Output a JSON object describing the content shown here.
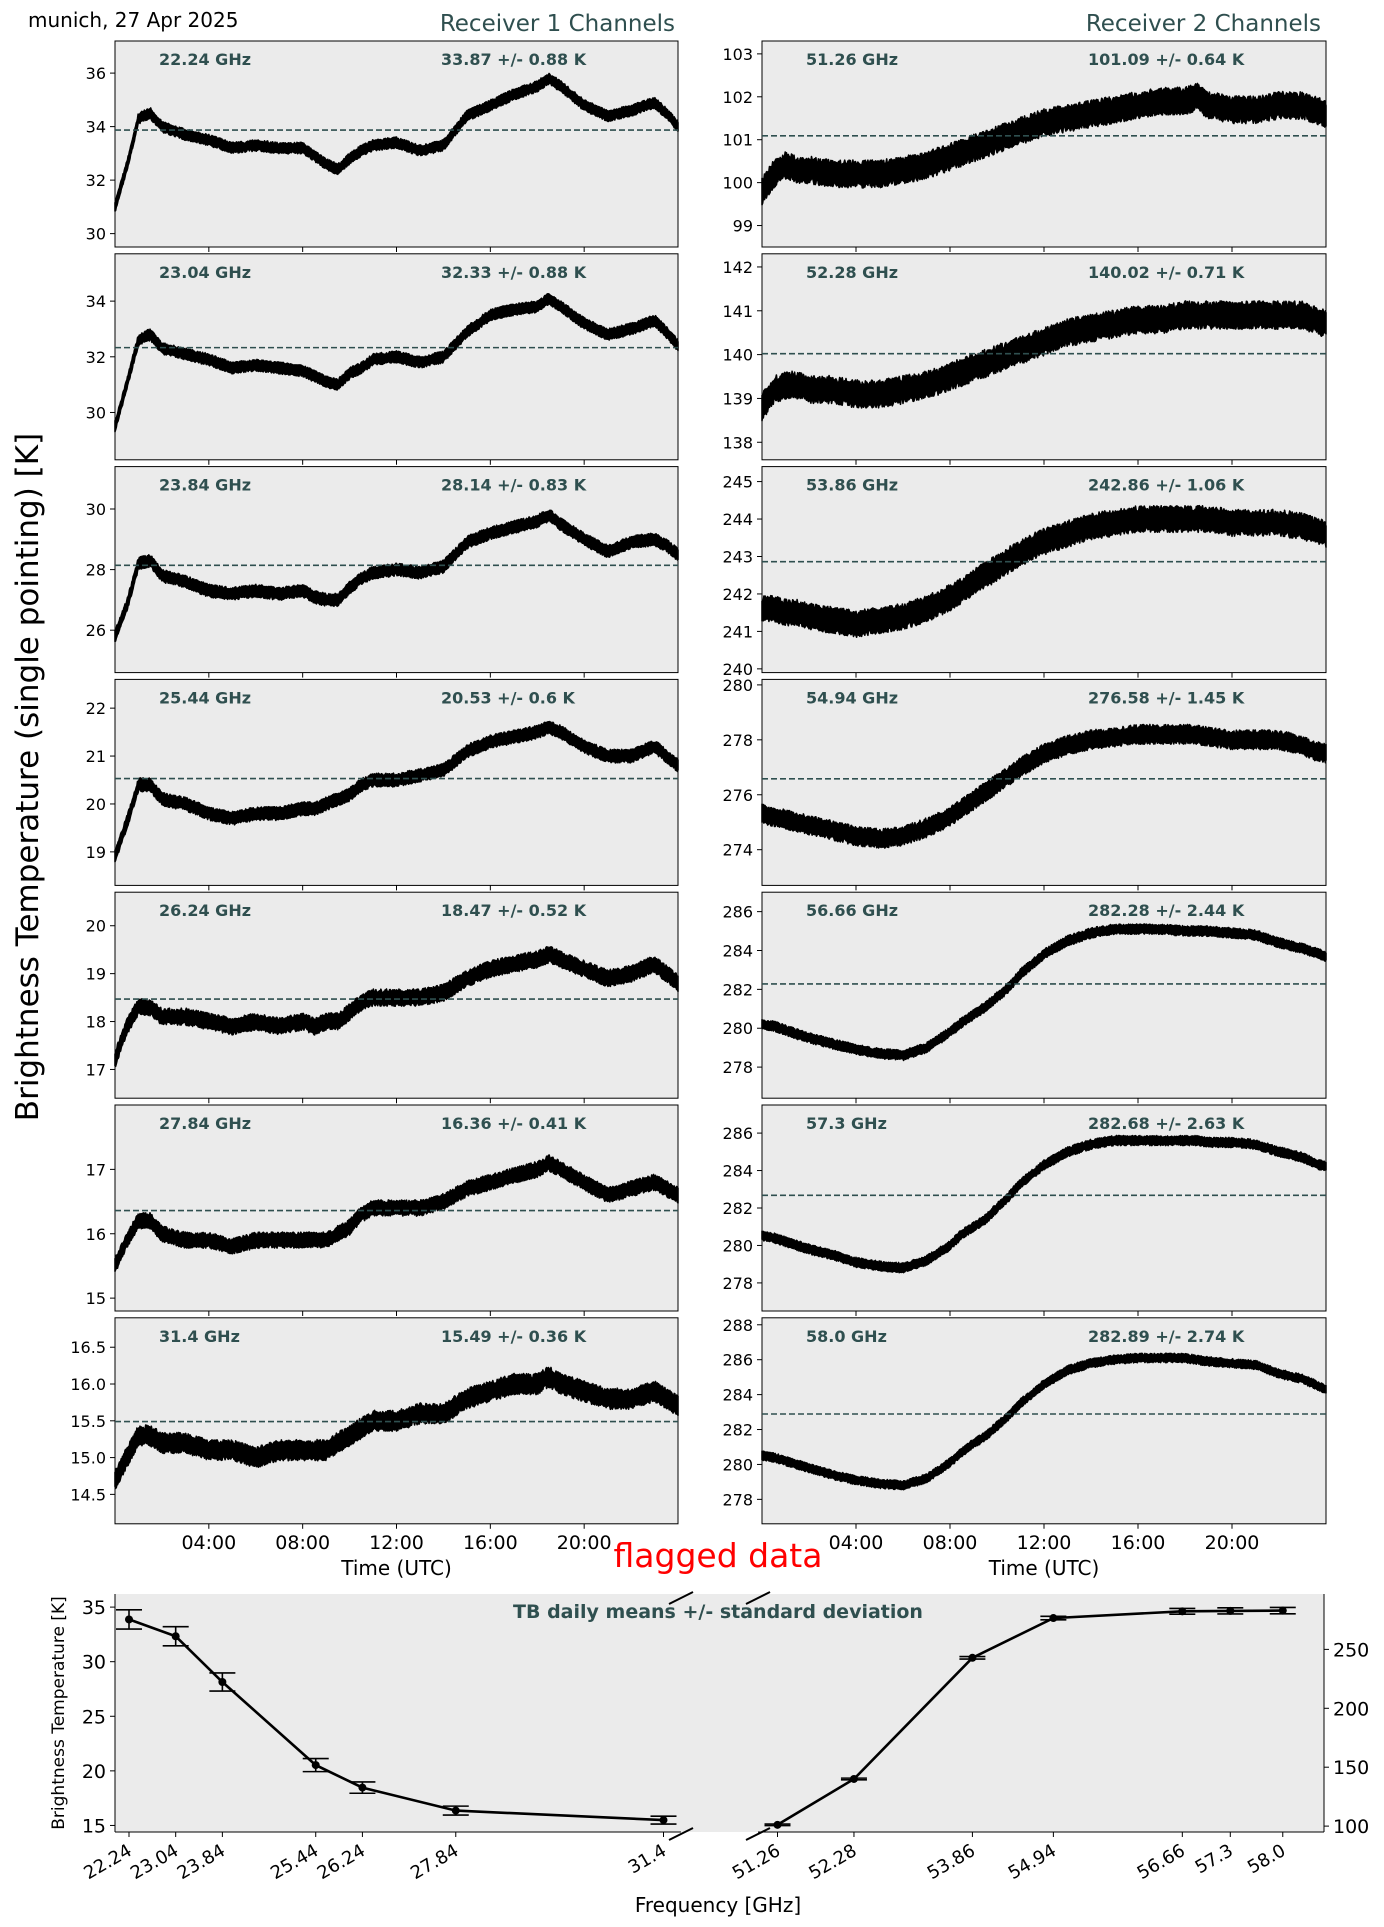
{
  "figure": {
    "location_date": "munich, 27 Apr 2025",
    "receiver1_title": "Receiver 1 Channels",
    "receiver2_title": "Receiver 2 Channels",
    "ylabel": "Brightness Temperature (single pointing) [K]",
    "flagged_label": "flagged data",
    "colors": {
      "panel_bg": "#ebebeb",
      "line": "#000000",
      "mean_line": "#2f4f4f",
      "label": "#2f4f4f",
      "flagged": "#ff0000"
    }
  },
  "chart_data": [
    {
      "type": "line",
      "group": "Receiver 1 Channels",
      "xlabel": "Time (UTC)",
      "xlim_hours": [
        0,
        24
      ],
      "xticks": [
        "04:00",
        "08:00",
        "12:00",
        "16:00",
        "20:00"
      ],
      "xtick_hours": [
        4,
        8,
        12,
        16,
        20
      ],
      "time_hours": [
        0,
        0.5,
        1,
        1.5,
        2,
        3,
        4,
        5,
        6,
        7,
        8,
        8.5,
        9,
        9.5,
        10,
        10.5,
        11,
        12,
        13,
        14,
        15,
        16,
        17,
        18,
        18.5,
        19,
        20,
        21,
        22,
        23,
        23.5,
        24
      ],
      "panels": [
        {
          "freq": "22.24 GHz",
          "stat": "33.87 +/- 0.88 K",
          "mean": 33.87,
          "ylim": [
            29.5,
            37.2
          ],
          "yticks": [
            30,
            32,
            34,
            36
          ],
          "tick_labels": [
            "30",
            "32",
            "34",
            "36"
          ],
          "noise": 0.12,
          "values": [
            31.0,
            32.5,
            34.3,
            34.5,
            34.0,
            33.7,
            33.5,
            33.2,
            33.3,
            33.2,
            33.2,
            32.9,
            32.6,
            32.4,
            32.8,
            33.1,
            33.3,
            33.4,
            33.1,
            33.3,
            34.4,
            34.8,
            35.2,
            35.5,
            35.8,
            35.5,
            34.8,
            34.4,
            34.6,
            34.9,
            34.5,
            34.0
          ]
        },
        {
          "freq": "23.04 GHz",
          "stat": "32.33 +/- 0.88 K",
          "mean": 32.33,
          "ylim": [
            28.3,
            35.7
          ],
          "yticks": [
            30,
            32,
            34
          ],
          "tick_labels": [
            "30",
            "32",
            "34"
          ],
          "noise": 0.12,
          "values": [
            29.5,
            31.0,
            32.6,
            32.8,
            32.3,
            32.1,
            31.9,
            31.6,
            31.7,
            31.6,
            31.5,
            31.3,
            31.1,
            31.0,
            31.4,
            31.6,
            31.9,
            32.0,
            31.8,
            32.0,
            32.9,
            33.5,
            33.7,
            33.8,
            34.1,
            33.8,
            33.2,
            32.8,
            33.0,
            33.3,
            32.9,
            32.4
          ]
        },
        {
          "freq": "23.84 GHz",
          "stat": "28.14 +/- 0.83 K",
          "mean": 28.14,
          "ylim": [
            24.6,
            31.4
          ],
          "yticks": [
            26,
            28,
            30
          ],
          "tick_labels": [
            "26",
            "28",
            "30"
          ],
          "noise": 0.12,
          "values": [
            25.8,
            26.8,
            28.2,
            28.3,
            27.8,
            27.6,
            27.3,
            27.2,
            27.3,
            27.2,
            27.3,
            27.1,
            27.0,
            27.0,
            27.4,
            27.7,
            27.9,
            28.0,
            27.9,
            28.1,
            28.9,
            29.2,
            29.4,
            29.6,
            29.8,
            29.5,
            29.0,
            28.6,
            28.9,
            29.0,
            28.8,
            28.5
          ]
        },
        {
          "freq": "25.44 GHz",
          "stat": "20.53 +/- 0.6 K",
          "mean": 20.53,
          "ylim": [
            18.3,
            22.6
          ],
          "yticks": [
            19,
            20,
            21,
            22
          ],
          "tick_labels": [
            "19",
            "20",
            "21",
            "22"
          ],
          "noise": 0.08,
          "values": [
            18.9,
            19.6,
            20.4,
            20.4,
            20.1,
            20.0,
            19.8,
            19.7,
            19.8,
            19.8,
            19.9,
            19.9,
            20.0,
            20.1,
            20.2,
            20.4,
            20.5,
            20.5,
            20.6,
            20.7,
            21.1,
            21.3,
            21.4,
            21.5,
            21.6,
            21.5,
            21.2,
            21.0,
            21.0,
            21.2,
            21.0,
            20.8
          ]
        },
        {
          "freq": "26.24 GHz",
          "stat": "18.47 +/- 0.52 K",
          "mean": 18.47,
          "ylim": [
            16.4,
            20.7
          ],
          "yticks": [
            17,
            18,
            19,
            20
          ],
          "tick_labels": [
            "17",
            "18",
            "19",
            "20"
          ],
          "noise": 0.1,
          "values": [
            17.2,
            17.9,
            18.3,
            18.3,
            18.1,
            18.1,
            18.0,
            17.9,
            18.0,
            17.9,
            18.0,
            17.9,
            18.0,
            18.0,
            18.2,
            18.4,
            18.5,
            18.5,
            18.5,
            18.6,
            18.9,
            19.1,
            19.2,
            19.3,
            19.4,
            19.3,
            19.1,
            18.9,
            19.0,
            19.2,
            19.0,
            18.8
          ]
        },
        {
          "freq": "27.84 GHz",
          "stat": "16.36 +/- 0.41 K",
          "mean": 16.36,
          "ylim": [
            14.8,
            18.0
          ],
          "yticks": [
            15,
            16,
            17
          ],
          "tick_labels": [
            "15",
            "16",
            "17"
          ],
          "noise": 0.07,
          "values": [
            15.5,
            15.9,
            16.2,
            16.2,
            16.0,
            15.9,
            15.9,
            15.8,
            15.9,
            15.9,
            15.9,
            15.9,
            15.9,
            16.0,
            16.1,
            16.3,
            16.4,
            16.4,
            16.4,
            16.5,
            16.7,
            16.8,
            16.9,
            17.0,
            17.1,
            17.0,
            16.8,
            16.6,
            16.7,
            16.8,
            16.7,
            16.6
          ]
        },
        {
          "freq": "31.4 GHz",
          "stat": "15.49 +/- 0.36 K",
          "mean": 15.49,
          "ylim": [
            14.1,
            16.9
          ],
          "yticks": [
            14.5,
            15.0,
            15.5,
            16.0,
            16.5
          ],
          "tick_labels": [
            "14.5",
            "15.0",
            "15.5",
            "16.0",
            "16.5"
          ],
          "noise": 0.08,
          "values": [
            14.7,
            15.0,
            15.3,
            15.3,
            15.2,
            15.2,
            15.1,
            15.1,
            15.0,
            15.1,
            15.1,
            15.1,
            15.1,
            15.2,
            15.3,
            15.4,
            15.5,
            15.5,
            15.6,
            15.6,
            15.8,
            15.9,
            16.0,
            16.0,
            16.1,
            16.0,
            15.9,
            15.8,
            15.8,
            15.9,
            15.8,
            15.7
          ]
        }
      ]
    },
    {
      "type": "line",
      "group": "Receiver 2 Channels",
      "xlabel": "Time (UTC)",
      "xlim_hours": [
        0,
        24
      ],
      "xticks": [
        "04:00",
        "08:00",
        "12:00",
        "16:00",
        "20:00"
      ],
      "xtick_hours": [
        4,
        8,
        12,
        16,
        20
      ],
      "time_hours": [
        0,
        0.5,
        1,
        1.5,
        2,
        3,
        4,
        5,
        6,
        7,
        8,
        8.5,
        9,
        9.5,
        10,
        10.5,
        11,
        12,
        13,
        14,
        15,
        16,
        17,
        18,
        18.5,
        19,
        20,
        21,
        22,
        23,
        23.5,
        24
      ],
      "panels": [
        {
          "freq": "51.26 GHz",
          "stat": "101.09 +/- 0.64 K",
          "mean": 101.09,
          "ylim": [
            98.5,
            103.3
          ],
          "yticks": [
            99,
            100,
            101,
            102,
            103
          ],
          "tick_labels": [
            "99",
            "100",
            "101",
            "102",
            "103"
          ],
          "noise": 0.18,
          "values": [
            99.8,
            100.2,
            100.4,
            100.3,
            100.3,
            100.2,
            100.2,
            100.2,
            100.3,
            100.4,
            100.6,
            100.7,
            100.8,
            100.9,
            101.0,
            101.1,
            101.2,
            101.4,
            101.5,
            101.6,
            101.7,
            101.8,
            101.9,
            101.9,
            102.0,
            101.8,
            101.7,
            101.7,
            101.8,
            101.8,
            101.7,
            101.6
          ]
        },
        {
          "freq": "52.28 GHz",
          "stat": "140.02 +/- 0.71 K",
          "mean": 140.02,
          "ylim": [
            137.6,
            142.3
          ],
          "yticks": [
            138,
            139,
            140,
            141,
            142
          ],
          "tick_labels": [
            "138",
            "139",
            "140",
            "141",
            "142"
          ],
          "noise": 0.18,
          "values": [
            138.8,
            139.2,
            139.3,
            139.3,
            139.2,
            139.2,
            139.1,
            139.1,
            139.2,
            139.3,
            139.5,
            139.6,
            139.7,
            139.8,
            139.9,
            140.0,
            140.1,
            140.3,
            140.5,
            140.6,
            140.7,
            140.8,
            140.8,
            140.9,
            140.9,
            140.9,
            140.9,
            140.9,
            140.9,
            140.9,
            140.8,
            140.7
          ]
        },
        {
          "freq": "53.86 GHz",
          "stat": "242.86 +/- 1.06 K",
          "mean": 242.86,
          "ylim": [
            239.9,
            245.4
          ],
          "yticks": [
            240,
            241,
            242,
            243,
            244,
            245
          ],
          "tick_labels": [
            "240",
            "241",
            "242",
            "243",
            "244",
            "245"
          ],
          "noise": 0.2,
          "values": [
            241.6,
            241.6,
            241.5,
            241.5,
            241.4,
            241.3,
            241.2,
            241.3,
            241.4,
            241.6,
            241.9,
            242.1,
            242.3,
            242.5,
            242.7,
            242.9,
            243.1,
            243.4,
            243.6,
            243.8,
            243.9,
            244.0,
            244.0,
            244.0,
            244.0,
            244.0,
            243.9,
            243.9,
            243.9,
            243.8,
            243.7,
            243.6
          ]
        },
        {
          "freq": "54.94 GHz",
          "stat": "276.58 +/- 1.45 K",
          "mean": 276.58,
          "ylim": [
            272.7,
            280.2
          ],
          "yticks": [
            274,
            276,
            278,
            280
          ],
          "tick_labels": [
            "274",
            "276",
            "278",
            "280"
          ],
          "noise": 0.2,
          "values": [
            275.3,
            275.2,
            275.1,
            275.0,
            274.9,
            274.7,
            274.5,
            274.4,
            274.5,
            274.8,
            275.2,
            275.5,
            275.8,
            276.1,
            276.4,
            276.7,
            277.0,
            277.5,
            277.8,
            278.0,
            278.1,
            278.2,
            278.2,
            278.2,
            278.2,
            278.1,
            278.0,
            278.0,
            278.0,
            277.8,
            277.6,
            277.5
          ]
        },
        {
          "freq": "56.66 GHz",
          "stat": "282.28 +/- 2.44 K",
          "mean": 282.28,
          "ylim": [
            276.4,
            287.0
          ],
          "yticks": [
            278,
            280,
            282,
            284,
            286
          ],
          "tick_labels": [
            "278",
            "280",
            "282",
            "284",
            "286"
          ],
          "noise": 0.15,
          "values": [
            280.2,
            280.1,
            279.9,
            279.7,
            279.5,
            279.2,
            278.9,
            278.7,
            278.6,
            279.0,
            279.8,
            280.3,
            280.7,
            281.1,
            281.6,
            282.1,
            282.8,
            283.8,
            284.5,
            284.9,
            285.1,
            285.1,
            285.1,
            285.0,
            285.0,
            285.0,
            284.9,
            284.8,
            284.4,
            284.1,
            283.9,
            283.7
          ]
        },
        {
          "freq": "57.3 GHz",
          "stat": "282.68 +/- 2.63 K",
          "mean": 282.68,
          "ylim": [
            276.5,
            287.5
          ],
          "yticks": [
            278,
            280,
            282,
            284,
            286
          ],
          "tick_labels": [
            "278",
            "280",
            "282",
            "284",
            "286"
          ],
          "noise": 0.15,
          "values": [
            280.5,
            280.4,
            280.2,
            280.0,
            279.8,
            279.5,
            279.1,
            278.9,
            278.8,
            279.2,
            280.0,
            280.6,
            281.0,
            281.4,
            282.0,
            282.6,
            283.3,
            284.3,
            285.0,
            285.4,
            285.6,
            285.6,
            285.6,
            285.6,
            285.6,
            285.5,
            285.5,
            285.4,
            285.0,
            284.7,
            284.4,
            284.2
          ]
        },
        {
          "freq": "58.0 GHz",
          "stat": "282.89 +/- 2.74 K",
          "mean": 282.89,
          "ylim": [
            276.6,
            288.4
          ],
          "yticks": [
            278,
            280,
            282,
            284,
            286,
            288
          ],
          "tick_labels": [
            "278",
            "280",
            "282",
            "284",
            "286",
            "288"
          ],
          "noise": 0.15,
          "values": [
            280.5,
            280.4,
            280.2,
            280.0,
            279.8,
            279.4,
            279.1,
            278.9,
            278.8,
            279.2,
            280.1,
            280.7,
            281.2,
            281.6,
            282.2,
            282.8,
            283.5,
            284.6,
            285.4,
            285.8,
            286.0,
            286.1,
            286.1,
            286.1,
            286.0,
            285.9,
            285.8,
            285.7,
            285.2,
            284.9,
            284.6,
            284.3
          ]
        }
      ]
    },
    {
      "type": "line",
      "group": "daily means",
      "title": "TB daily means +/- standard deviation",
      "xlabel": "Frequency [GHz]",
      "ylabel": "Brightness Temperature [K]",
      "receiver1": {
        "freqs": [
          22.24,
          23.04,
          23.84,
          25.44,
          26.24,
          27.84,
          31.4
        ],
        "tick_labels": [
          "22.24",
          "23.04",
          "23.84",
          "25.44",
          "26.24",
          "27.84",
          "31.4"
        ],
        "means": [
          33.87,
          32.33,
          28.14,
          20.53,
          18.47,
          16.36,
          15.49
        ],
        "std": [
          0.88,
          0.88,
          0.83,
          0.6,
          0.52,
          0.41,
          0.36
        ],
        "xlim": [
          22.0,
          31.7
        ],
        "ylim": [
          14.4,
          36.2
        ],
        "yticks": [
          15,
          20,
          25,
          30,
          35
        ],
        "ytick_labels": [
          "15",
          "20",
          "25",
          "30",
          "35"
        ]
      },
      "receiver2": {
        "freqs": [
          51.26,
          52.28,
          53.86,
          54.94,
          56.66,
          57.3,
          58.0
        ],
        "tick_labels": [
          "51.26",
          "52.28",
          "53.86",
          "54.94",
          "56.66",
          "57.3",
          "58.0"
        ],
        "means": [
          101.09,
          140.02,
          242.86,
          276.58,
          282.28,
          282.68,
          282.89
        ],
        "std": [
          0.64,
          0.71,
          1.06,
          1.45,
          2.44,
          2.63,
          2.74
        ],
        "xlim": [
          51.0,
          58.55
        ],
        "ylim": [
          95.0,
          297.0
        ],
        "yticks": [
          100,
          150,
          200,
          250
        ],
        "ytick_labels": [
          "100",
          "150",
          "200",
          "250"
        ]
      }
    }
  ]
}
